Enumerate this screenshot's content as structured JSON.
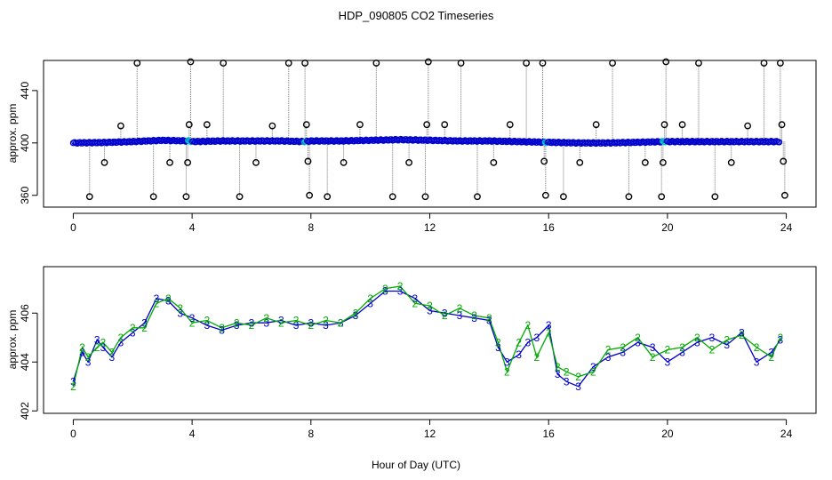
{
  "title": "HDP_090805  CO2 Timeseries",
  "xlabel": "Hour of Day (UTC)",
  "chart_data": [
    {
      "type": "scatter",
      "ylabel": "approx. ppm",
      "xlim": [
        -1,
        25
      ],
      "ylim": [
        351,
        463
      ],
      "x_ticks": [
        0,
        4,
        8,
        12,
        16,
        20,
        24
      ],
      "y_ticks": [
        360,
        400,
        440
      ],
      "baseline": {
        "name": "",
        "color": "#0000cc",
        "highlight_color": "#00cccc",
        "x": [
          0.0,
          1.0,
          2.0,
          3.0,
          3.9,
          4.0,
          5.0,
          6.0,
          7.0,
          7.8,
          8.0,
          9.0,
          10.0,
          11.0,
          12.0,
          13.0,
          14.0,
          15.0,
          15.9,
          16.0,
          17.0,
          18.0,
          19.0,
          19.9,
          20.0,
          21.0,
          22.0,
          23.0,
          23.8
        ],
        "y": [
          400.0,
          400.3,
          401.0,
          402.0,
          401.5,
          401.0,
          401.5,
          401.5,
          401.5,
          401.0,
          401.5,
          401.5,
          402.0,
          402.5,
          402.0,
          401.5,
          401.5,
          401.0,
          400.5,
          400.5,
          400.0,
          400.0,
          400.5,
          401.0,
          401.0,
          401.0,
          401.0,
          401.0,
          401.0
        ],
        "point_spacing_hours": 0.045
      },
      "outliers": {
        "color": "#000000",
        "points": [
          {
            "x": 0.55,
            "y": 359
          },
          {
            "x": 1.05,
            "y": 385
          },
          {
            "x": 1.6,
            "y": 413
          },
          {
            "x": 2.15,
            "y": 461
          },
          {
            "x": 2.7,
            "y": 359
          },
          {
            "x": 3.25,
            "y": 385
          },
          {
            "x": 3.8,
            "y": 359
          },
          {
            "x": 3.85,
            "y": 385
          },
          {
            "x": 3.9,
            "y": 414
          },
          {
            "x": 3.95,
            "y": 462
          },
          {
            "x": 4.5,
            "y": 414
          },
          {
            "x": 5.05,
            "y": 461
          },
          {
            "x": 5.6,
            "y": 359
          },
          {
            "x": 6.15,
            "y": 385
          },
          {
            "x": 6.7,
            "y": 413
          },
          {
            "x": 7.25,
            "y": 461
          },
          {
            "x": 7.8,
            "y": 461
          },
          {
            "x": 7.85,
            "y": 414
          },
          {
            "x": 7.9,
            "y": 386
          },
          {
            "x": 7.95,
            "y": 360
          },
          {
            "x": 8.55,
            "y": 359
          },
          {
            "x": 9.1,
            "y": 385
          },
          {
            "x": 9.65,
            "y": 414
          },
          {
            "x": 10.2,
            "y": 461
          },
          {
            "x": 10.75,
            "y": 359
          },
          {
            "x": 11.3,
            "y": 385
          },
          {
            "x": 11.85,
            "y": 359
          },
          {
            "x": 11.9,
            "y": 414
          },
          {
            "x": 11.95,
            "y": 462
          },
          {
            "x": 12.5,
            "y": 414
          },
          {
            "x": 13.05,
            "y": 461
          },
          {
            "x": 13.6,
            "y": 359
          },
          {
            "x": 14.15,
            "y": 385
          },
          {
            "x": 14.7,
            "y": 414
          },
          {
            "x": 15.25,
            "y": 461
          },
          {
            "x": 15.8,
            "y": 461
          },
          {
            "x": 15.85,
            "y": 386
          },
          {
            "x": 15.9,
            "y": 360
          },
          {
            "x": 16.5,
            "y": 359
          },
          {
            "x": 17.05,
            "y": 385
          },
          {
            "x": 17.6,
            "y": 414
          },
          {
            "x": 18.15,
            "y": 461
          },
          {
            "x": 18.7,
            "y": 359
          },
          {
            "x": 19.25,
            "y": 385
          },
          {
            "x": 19.8,
            "y": 359
          },
          {
            "x": 19.85,
            "y": 385
          },
          {
            "x": 19.9,
            "y": 414
          },
          {
            "x": 19.95,
            "y": 462
          },
          {
            "x": 20.5,
            "y": 414
          },
          {
            "x": 21.05,
            "y": 461
          },
          {
            "x": 21.6,
            "y": 359
          },
          {
            "x": 22.15,
            "y": 385
          },
          {
            "x": 22.7,
            "y": 413
          },
          {
            "x": 23.25,
            "y": 461
          },
          {
            "x": 23.8,
            "y": 461
          },
          {
            "x": 23.85,
            "y": 414
          },
          {
            "x": 23.9,
            "y": 386
          },
          {
            "x": 23.95,
            "y": 360
          }
        ]
      }
    },
    {
      "type": "line",
      "ylabel": "approx. ppm",
      "xlim": [
        -1,
        25
      ],
      "ylim": [
        401.9,
        407.9
      ],
      "x_ticks": [
        0,
        4,
        8,
        12,
        16,
        20,
        24
      ],
      "y_ticks": [
        402,
        404,
        406
      ],
      "series": [
        {
          "name": "",
          "symbol": "3",
          "color": "#0000cc",
          "x": [
            0.0,
            0.3,
            0.5,
            0.8,
            1.0,
            1.3,
            1.6,
            2.0,
            2.4,
            2.8,
            3.2,
            3.6,
            4.0,
            4.5,
            5.0,
            5.5,
            6.0,
            6.5,
            7.0,
            7.5,
            8.0,
            8.5,
            9.0,
            9.5,
            10.0,
            10.5,
            11.0,
            11.5,
            12.0,
            12.5,
            13.0,
            13.5,
            14.0,
            14.3,
            14.6,
            15.0,
            15.3,
            15.6,
            16.0,
            16.3,
            16.6,
            17.0,
            17.5,
            18.0,
            18.5,
            19.0,
            19.5,
            20.0,
            20.5,
            21.0,
            21.5,
            22.0,
            22.5,
            23.0,
            23.5,
            23.8
          ],
          "y": [
            403.2,
            404.4,
            404.0,
            404.9,
            404.6,
            404.2,
            404.8,
            405.2,
            405.6,
            406.6,
            406.5,
            406.0,
            405.8,
            405.5,
            405.3,
            405.5,
            405.6,
            405.6,
            405.7,
            405.5,
            405.6,
            405.5,
            405.6,
            405.9,
            406.4,
            406.9,
            406.9,
            406.6,
            406.1,
            406.0,
            405.9,
            405.8,
            405.7,
            404.6,
            404.0,
            404.3,
            404.8,
            405.0,
            405.5,
            403.5,
            403.2,
            403.0,
            403.8,
            404.2,
            404.4,
            404.8,
            404.6,
            404.0,
            404.4,
            404.8,
            405.0,
            404.7,
            405.2,
            404.0,
            404.4,
            404.9
          ]
        },
        {
          "name": "",
          "symbol": "2",
          "color": "#00aa00",
          "x": [
            0.0,
            0.3,
            0.5,
            0.8,
            1.0,
            1.3,
            1.6,
            2.0,
            2.4,
            2.8,
            3.2,
            3.6,
            4.0,
            4.5,
            5.0,
            5.5,
            6.0,
            6.5,
            7.0,
            7.5,
            8.0,
            8.5,
            9.0,
            9.5,
            10.0,
            10.5,
            11.0,
            11.5,
            12.0,
            12.5,
            13.0,
            13.5,
            14.0,
            14.3,
            14.6,
            15.0,
            15.3,
            15.6,
            16.0,
            16.3,
            16.6,
            17.0,
            17.5,
            18.0,
            18.5,
            19.0,
            19.5,
            20.0,
            20.5,
            21.0,
            21.5,
            22.0,
            22.5,
            23.0,
            23.5,
            23.8
          ],
          "y": [
            403.0,
            404.6,
            404.2,
            404.6,
            404.8,
            404.4,
            405.0,
            405.4,
            405.4,
            406.4,
            406.6,
            406.2,
            405.6,
            405.7,
            405.4,
            405.6,
            405.5,
            405.8,
            405.6,
            405.7,
            405.5,
            405.7,
            405.6,
            406.0,
            406.6,
            407.0,
            407.1,
            406.4,
            406.3,
            405.9,
            406.2,
            405.9,
            405.8,
            404.8,
            403.6,
            404.8,
            405.5,
            404.2,
            405.2,
            403.8,
            403.6,
            403.4,
            403.6,
            404.5,
            404.6,
            405.0,
            404.2,
            404.5,
            404.6,
            405.0,
            404.5,
            404.9,
            405.1,
            404.6,
            404.2,
            405.0
          ]
        }
      ]
    }
  ]
}
